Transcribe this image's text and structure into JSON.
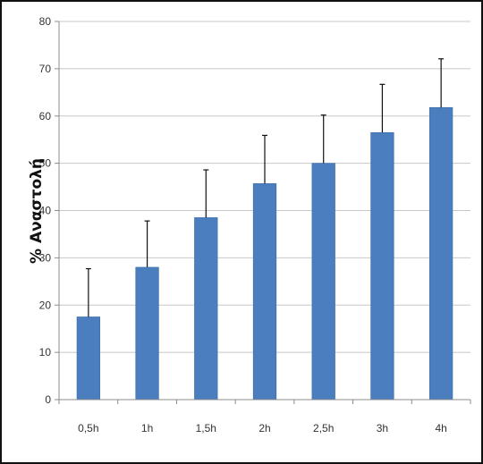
{
  "chart_data": {
    "type": "bar",
    "title": "",
    "xlabel": "",
    "ylabel": "% Αναστολή",
    "categories": [
      "0,5h",
      "1h",
      "1,5h",
      "2h",
      "2,5h",
      "3h",
      "4h"
    ],
    "series": [
      {
        "values": [
          17.5,
          28,
          38.5,
          45.7,
          50,
          56.5,
          61.8
        ],
        "error_plus": [
          10.2,
          9.8,
          10.1,
          10.2,
          10.2,
          10.2,
          10.3
        ]
      }
    ],
    "ylim": [
      0,
      80
    ],
    "yticks": [
      0,
      10,
      20,
      30,
      40,
      50,
      60,
      70,
      80
    ],
    "grid": true,
    "legend": "none",
    "colors": {
      "bar": "#4a7ebf",
      "bar_edge": "#3c6aa6",
      "error_bar": "#111111",
      "grid": "#c8c8c8",
      "axis": "#8c8c8c"
    }
  }
}
